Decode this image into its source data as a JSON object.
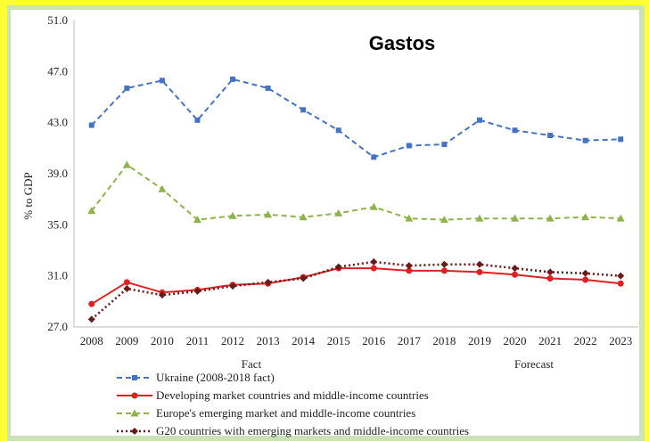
{
  "chart_data": {
    "type": "line",
    "title": "Gastos",
    "ylabel": "% to GDP",
    "xlabel": "",
    "ylim": [
      27.0,
      51.0
    ],
    "yticks": [
      "51.0",
      "47.0",
      "43.0",
      "39.0",
      "35.0",
      "31.0",
      "27.0"
    ],
    "categories": [
      "2008",
      "2009",
      "2010",
      "2011",
      "2012",
      "2013",
      "2014",
      "2015",
      "2016",
      "2017",
      "2018",
      "2019",
      "2020",
      "2021",
      "2022",
      "2023"
    ],
    "period_labels": [
      "Fact",
      "Forecast"
    ],
    "grid": false,
    "legend_position": "bottom",
    "series": [
      {
        "name": "Ukraine (2008-2018 fact)",
        "color": "#4472c4",
        "style": "dashed",
        "marker": "square",
        "values": [
          42.8,
          45.7,
          46.3,
          43.2,
          46.4,
          45.7,
          44.0,
          42.4,
          40.3,
          41.2,
          41.3,
          43.2,
          42.4,
          42.0,
          41.6,
          41.7
        ]
      },
      {
        "name": "Developing market countries and middle-income countries",
        "color": "#e02020",
        "style": "solid",
        "marker": "circle",
        "values": [
          28.8,
          30.5,
          29.7,
          29.9,
          30.3,
          30.4,
          30.9,
          31.6,
          31.6,
          31.4,
          31.4,
          31.3,
          31.1,
          30.8,
          30.7,
          30.4
        ]
      },
      {
        "name": "Europe's emerging market and middle-income countries",
        "color": "#8db34a",
        "style": "dashed",
        "marker": "triangle",
        "values": [
          36.1,
          39.7,
          37.8,
          35.4,
          35.7,
          35.8,
          35.6,
          35.9,
          36.4,
          35.5,
          35.4,
          35.5,
          35.5,
          35.5,
          35.6,
          35.5
        ]
      },
      {
        "name": "G20 countries with emerging markets and middle-income countries",
        "color": "#6b1a1a",
        "style": "dotted",
        "marker": "diamond",
        "values": [
          27.6,
          30.0,
          29.5,
          29.8,
          30.2,
          30.5,
          30.8,
          31.7,
          32.1,
          31.8,
          31.9,
          31.9,
          31.6,
          31.3,
          31.2,
          31.0
        ]
      }
    ]
  }
}
